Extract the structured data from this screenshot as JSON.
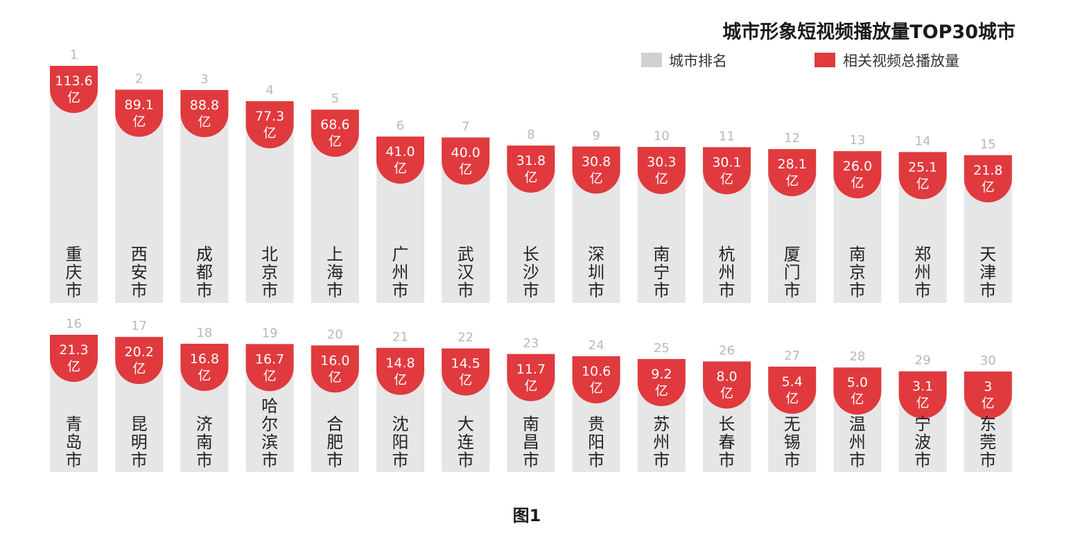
{
  "title": "城市形象短视频播放量TOP30城市",
  "legend": {
    "rank": {
      "label": "城市排名",
      "color": "#d0d0d0"
    },
    "views": {
      "label": "相关视频总播放量",
      "color": "#e03a3e"
    }
  },
  "caption": "图1",
  "unit": "亿",
  "chart_data": {
    "type": "bar",
    "title": "城市形象短视频播放量TOP30城市",
    "xlabel": "",
    "ylabel": "",
    "unit": "亿",
    "series": [
      {
        "name": "相关视频总播放量",
        "color": "#e03a3e"
      }
    ],
    "legend": [
      "城市排名",
      "相关视频总播放量"
    ],
    "legend_position": "top-right",
    "grid": false,
    "categories": [
      "重庆市",
      "西安市",
      "成都市",
      "北京市",
      "上海市",
      "广州市",
      "武汉市",
      "长沙市",
      "深圳市",
      "南宁市",
      "杭州市",
      "厦门市",
      "南京市",
      "郑州市",
      "天津市",
      "青岛市",
      "昆明市",
      "济南市",
      "哈尔滨市",
      "合肥市",
      "沈阳市",
      "大连市",
      "南昌市",
      "贵阳市",
      "苏州市",
      "长春市",
      "无锡市",
      "温州市",
      "宁波市",
      "东莞市"
    ],
    "ranks": [
      1,
      2,
      3,
      4,
      5,
      6,
      7,
      8,
      9,
      10,
      11,
      12,
      13,
      14,
      15,
      16,
      17,
      18,
      19,
      20,
      21,
      22,
      23,
      24,
      25,
      26,
      27,
      28,
      29,
      30
    ],
    "values": [
      113.6,
      89.1,
      88.8,
      77.3,
      68.6,
      41.0,
      40.0,
      31.8,
      30.8,
      30.3,
      30.1,
      28.1,
      26.0,
      25.1,
      21.8,
      21.3,
      20.2,
      16.8,
      16.7,
      16.0,
      14.8,
      14.5,
      11.7,
      10.6,
      9.2,
      8.0,
      5.4,
      5.0,
      3.1,
      3
    ],
    "value_labels": [
      "113.6",
      "89.1",
      "88.8",
      "77.3",
      "68.6",
      "41.0",
      "40.0",
      "31.8",
      "30.8",
      "30.3",
      "30.1",
      "28.1",
      "26.0",
      "25.1",
      "21.8",
      "21.3",
      "20.2",
      "16.8",
      "16.7",
      "16.0",
      "14.8",
      "14.5",
      "11.7",
      "10.6",
      "9.2",
      "8.0",
      "5.4",
      "5.0",
      "3.1",
      "3"
    ]
  }
}
